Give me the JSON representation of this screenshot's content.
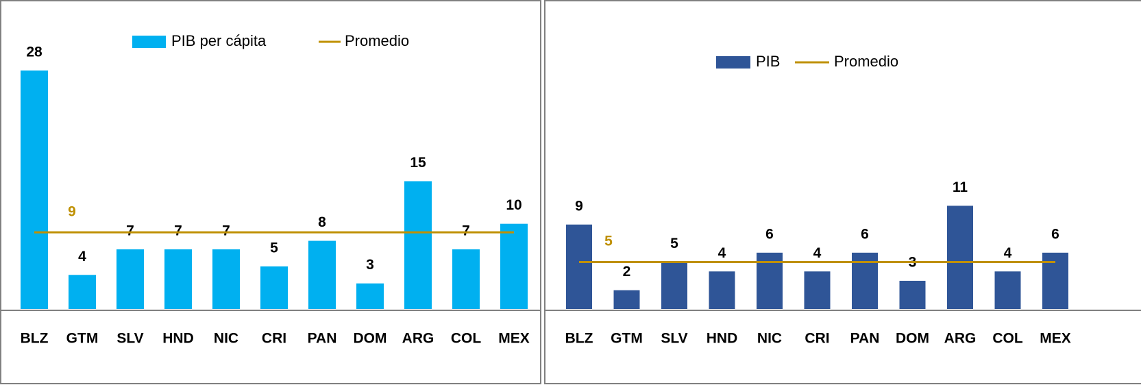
{
  "chart_data": [
    {
      "type": "bar",
      "categories": [
        "BLZ",
        "GTM",
        "SLV",
        "HND",
        "NIC",
        "CRI",
        "PAN",
        "DOM",
        "ARG",
        "COL",
        "MEX"
      ],
      "series": [
        {
          "name": "PIB per cápita",
          "color": "#00b0f0",
          "values": [
            28,
            4,
            7,
            7,
            7,
            5,
            8,
            3,
            15,
            7,
            10
          ]
        }
      ],
      "average": {
        "name": "Promedio",
        "color": "#bf9000",
        "value": 9
      },
      "ylim": [
        0,
        30
      ]
    },
    {
      "type": "bar",
      "categories": [
        "BLZ",
        "GTM",
        "SLV",
        "HND",
        "NIC",
        "CRI",
        "PAN",
        "DOM",
        "ARG",
        "COL",
        "MEX"
      ],
      "series": [
        {
          "name": "PIB",
          "color": "#2f5597",
          "values": [
            9,
            2,
            5,
            4,
            6,
            4,
            6,
            3,
            11,
            4,
            6
          ]
        }
      ],
      "average": {
        "name": "Promedio",
        "color": "#bf9000",
        "value": 5
      },
      "ylim": [
        0,
        32.5
      ]
    }
  ]
}
